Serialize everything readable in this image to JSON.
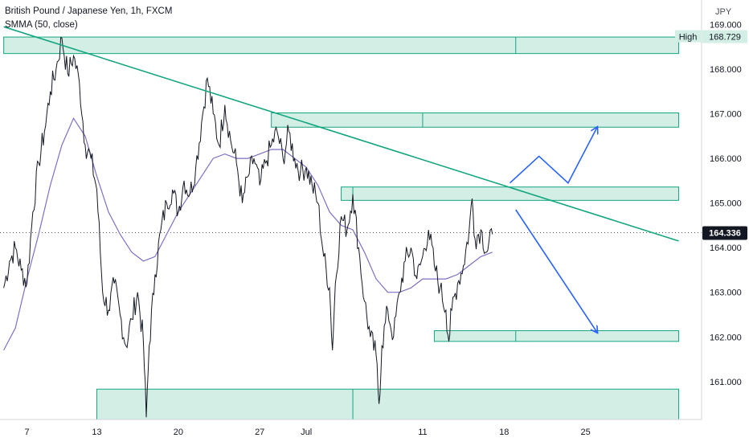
{
  "legend": {
    "title": "British Pound / Japanese Yen, 1h, FXCM",
    "indicator": "SMMA (50, close)"
  },
  "chart_data": {
    "type": "candlestick",
    "currency": "JPY",
    "y_ticks": [
      "169.000",
      "168.000",
      "167.000",
      "166.000",
      "165.000",
      "164.000",
      "163.000",
      "162.000",
      "161.000"
    ],
    "x_ticks": [
      "7",
      "13",
      "20",
      "27",
      "Jul",
      "11",
      "18",
      "25"
    ],
    "ylim": [
      160.15,
      169.55
    ],
    "last_price": "164.336",
    "high_label": "High",
    "high_value": "168.729",
    "colors": {
      "price": "#131722",
      "smma": "#7e6fc4",
      "trendline": "#13a680",
      "zone_fill": "#d3eee5",
      "zone_edge": "#13a680",
      "projection": "#2962ff",
      "price_badge": "#131722",
      "high_badge": "#d3eee5"
    },
    "price_path": [
      [
        "Jun 5 00:00",
        163.1
      ],
      [
        "Jun 5 12:00",
        163.7
      ],
      [
        "Jun 6 00:00",
        164.0
      ],
      [
        "Jun 6 12:00",
        163.5
      ],
      [
        "Jun 7 00:00",
        163.2
      ],
      [
        "Jun 7 12:00",
        164.8
      ],
      [
        "Jun 8 00:00",
        165.9
      ],
      [
        "Jun 8 12:00",
        166.6
      ],
      [
        "Jun 9 00:00",
        167.5
      ],
      [
        "Jun 9 12:00",
        168.0
      ],
      [
        "Jun 10 00:00",
        168.7
      ],
      [
        "Jun 10 12:00",
        167.9
      ],
      [
        "Jun 11 00:00",
        168.3
      ],
      [
        "Jun 11 12:00",
        167.7
      ],
      [
        "Jun 12 00:00",
        166.3
      ],
      [
        "Jun 12 12:00",
        166.0
      ],
      [
        "Jun 13 00:00",
        165.3
      ],
      [
        "Jun 13 12:00",
        163.0
      ],
      [
        "Jun 14 00:00",
        162.6
      ],
      [
        "Jun 14 12:00",
        163.2
      ],
      [
        "Jun 15 00:00",
        162.5
      ],
      [
        "Jun 15 12:00",
        161.8
      ],
      [
        "Jun 16 00:00",
        162.4
      ],
      [
        "Jun 16 12:00",
        163.0
      ],
      [
        "Jun 17 00:00",
        161.9
      ],
      [
        "Jun 17 06:00",
        160.2
      ],
      [
        "Jun 17 12:00",
        161.8
      ],
      [
        "Jun 18 00:00",
        163.4
      ],
      [
        "Jun 18 12:00",
        164.4
      ],
      [
        "Jun 19 00:00",
        165.0
      ],
      [
        "Jun 19 12:00",
        165.3
      ],
      [
        "Jun 20 00:00",
        164.8
      ],
      [
        "Jun 20 12:00",
        165.5
      ],
      [
        "Jun 21 00:00",
        165.2
      ],
      [
        "Jun 21 12:00",
        165.8
      ],
      [
        "Jun 22 00:00",
        166.8
      ],
      [
        "Jun 22 12:00",
        167.8
      ],
      [
        "Jun 23 00:00",
        167.0
      ],
      [
        "Jun 23 12:00",
        166.3
      ],
      [
        "Jun 24 00:00",
        167.2
      ],
      [
        "Jun 24 12:00",
        166.4
      ],
      [
        "Jun 25 00:00",
        165.9
      ],
      [
        "Jun 25 12:00",
        165.0
      ],
      [
        "Jun 26 00:00",
        165.6
      ],
      [
        "Jun 26 12:00",
        166.0
      ],
      [
        "Jun 27 00:00",
        165.4
      ],
      [
        "Jun 27 12:00",
        165.9
      ],
      [
        "Jun 28 00:00",
        166.3
      ],
      [
        "Jun 28 12:00",
        166.6
      ],
      [
        "Jun 29 00:00",
        166.0
      ],
      [
        "Jun 29 12:00",
        166.6
      ],
      [
        "Jun 30 00:00",
        166.0
      ],
      [
        "Jun 30 12:00",
        165.7
      ],
      [
        "Jul 1 00:00",
        165.8
      ],
      [
        "Jul 1 12:00",
        165.4
      ],
      [
        "Jul 2 00:00",
        165.0
      ],
      [
        "Jul 2 12:00",
        163.8
      ],
      [
        "Jul 3 00:00",
        163.1
      ],
      [
        "Jul 3 06:00",
        161.7
      ],
      [
        "Jul 3 12:00",
        163.2
      ],
      [
        "Jul 4 00:00",
        164.7
      ],
      [
        "Jul 4 12:00",
        164.4
      ],
      [
        "Jul 5 00:00",
        165.2
      ],
      [
        "Jul 5 12:00",
        164.0
      ],
      [
        "Jul 6 00:00",
        162.8
      ],
      [
        "Jul 6 12:00",
        162.0
      ],
      [
        "Jul 7 00:00",
        161.6
      ],
      [
        "Jul 7 06:00",
        160.5
      ],
      [
        "Jul 7 12:00",
        161.8
      ],
      [
        "Jul 8 00:00",
        162.6
      ],
      [
        "Jul 8 12:00",
        162.0
      ],
      [
        "Jul 9 00:00",
        163.0
      ],
      [
        "Jul 9 12:00",
        163.7
      ],
      [
        "Jul 10 00:00",
        164.0
      ],
      [
        "Jul 10 12:00",
        163.3
      ],
      [
        "Jul 11 00:00",
        163.8
      ],
      [
        "Jul 11 12:00",
        164.4
      ],
      [
        "Jul 12 00:00",
        163.6
      ],
      [
        "Jul 12 12:00",
        163.1
      ],
      [
        "Jul 13 00:00",
        162.6
      ],
      [
        "Jul 13 06:00",
        161.9
      ],
      [
        "Jul 13 12:00",
        162.6
      ],
      [
        "Jul 14 00:00",
        163.2
      ],
      [
        "Jul 14 12:00",
        163.6
      ],
      [
        "Jul 15 00:00",
        164.4
      ],
      [
        "Jul 15 06:00",
        165.1
      ],
      [
        "Jul 15 12:00",
        164.2
      ],
      [
        "Jul 16 00:00",
        164.4
      ],
      [
        "Jul 16 12:00",
        163.9
      ],
      [
        "Jul 17 00:00",
        164.3
      ]
    ],
    "smma": [
      [
        "Jun 5 00:00",
        161.7
      ],
      [
        "Jun 6 00:00",
        162.2
      ],
      [
        "Jun 7 00:00",
        163.3
      ],
      [
        "Jun 8 00:00",
        164.3
      ],
      [
        "Jun 9 00:00",
        165.4
      ],
      [
        "Jun 10 00:00",
        166.3
      ],
      [
        "Jun 11 00:00",
        166.9
      ],
      [
        "Jun 12 00:00",
        166.5
      ],
      [
        "Jun 13 00:00",
        165.6
      ],
      [
        "Jun 14 00:00",
        164.8
      ],
      [
        "Jun 15 00:00",
        164.3
      ],
      [
        "Jun 16 00:00",
        163.9
      ],
      [
        "Jun 17 00:00",
        163.7
      ],
      [
        "Jun 18 00:00",
        163.8
      ],
      [
        "Jun 19 00:00",
        164.3
      ],
      [
        "Jun 20 00:00",
        164.8
      ],
      [
        "Jun 21 00:00",
        165.2
      ],
      [
        "Jun 22 00:00",
        165.6
      ],
      [
        "Jun 23 00:00",
        166.0
      ],
      [
        "Jun 24 00:00",
        166.1
      ],
      [
        "Jun 25 00:00",
        166.0
      ],
      [
        "Jun 26 00:00",
        166.0
      ],
      [
        "Jun 27 00:00",
        166.1
      ],
      [
        "Jun 28 00:00",
        166.2
      ],
      [
        "Jun 29 00:00",
        166.2
      ],
      [
        "Jun 30 00:00",
        166.0
      ],
      [
        "Jul 1 00:00",
        165.8
      ],
      [
        "Jul 2 00:00",
        165.4
      ],
      [
        "Jul 3 00:00",
        164.8
      ],
      [
        "Jul 4 00:00",
        164.5
      ],
      [
        "Jul 5 00:00",
        164.4
      ],
      [
        "Jul 6 00:00",
        163.9
      ],
      [
        "Jul 7 00:00",
        163.3
      ],
      [
        "Jul 8 00:00",
        163.0
      ],
      [
        "Jul 9 00:00",
        163.0
      ],
      [
        "Jul 10 00:00",
        163.1
      ],
      [
        "Jul 11 00:00",
        163.3
      ],
      [
        "Jul 12 00:00",
        163.3
      ],
      [
        "Jul 13 00:00",
        163.3
      ],
      [
        "Jul 14 00:00",
        163.4
      ],
      [
        "Jul 15 00:00",
        163.6
      ],
      [
        "Jul 16 00:00",
        163.8
      ],
      [
        "Jul 17 00:00",
        163.9
      ]
    ],
    "trendline": [
      [
        "Jun 5 00:00",
        168.95
      ],
      [
        "Aug 2 00:00",
        164.15
      ]
    ],
    "zones": [
      {
        "x": [
          "Jun 5 00:00",
          "Aug 2 00:00"
        ],
        "y": [
          168.35,
          168.72
        ],
        "split": "Jul 19 00:00"
      },
      {
        "x": [
          "Jun 28 00:00",
          "Aug 2 00:00"
        ],
        "y": [
          166.7,
          167.02
        ],
        "split": "Jul 11 00:00"
      },
      {
        "x": [
          "Jul 4 00:00",
          "Aug 2 00:00"
        ],
        "y": [
          165.06,
          165.36
        ],
        "split": "Jul 5 00:00"
      },
      {
        "x": [
          "Jul 12 00:00",
          "Aug 2 00:00"
        ],
        "y": [
          161.9,
          162.14
        ],
        "split": "Jul 19 00:00"
      },
      {
        "x": [
          "Jun 13 00:00",
          "Aug 2 00:00"
        ],
        "y": [
          160.15,
          160.83
        ],
        "split": "Jul 5 00:00"
      }
    ],
    "projections": [
      [
        [
          "Jul 18 12:00",
          165.45
        ],
        [
          "Jul 21 00:00",
          166.05
        ],
        [
          "Jul 23 12:00",
          165.45
        ],
        [
          "Jul 26 00:00",
          166.7
        ]
      ],
      [
        [
          "Jul 19 00:00",
          164.85
        ],
        [
          "Jul 26 00:00",
          162.1
        ]
      ]
    ]
  }
}
